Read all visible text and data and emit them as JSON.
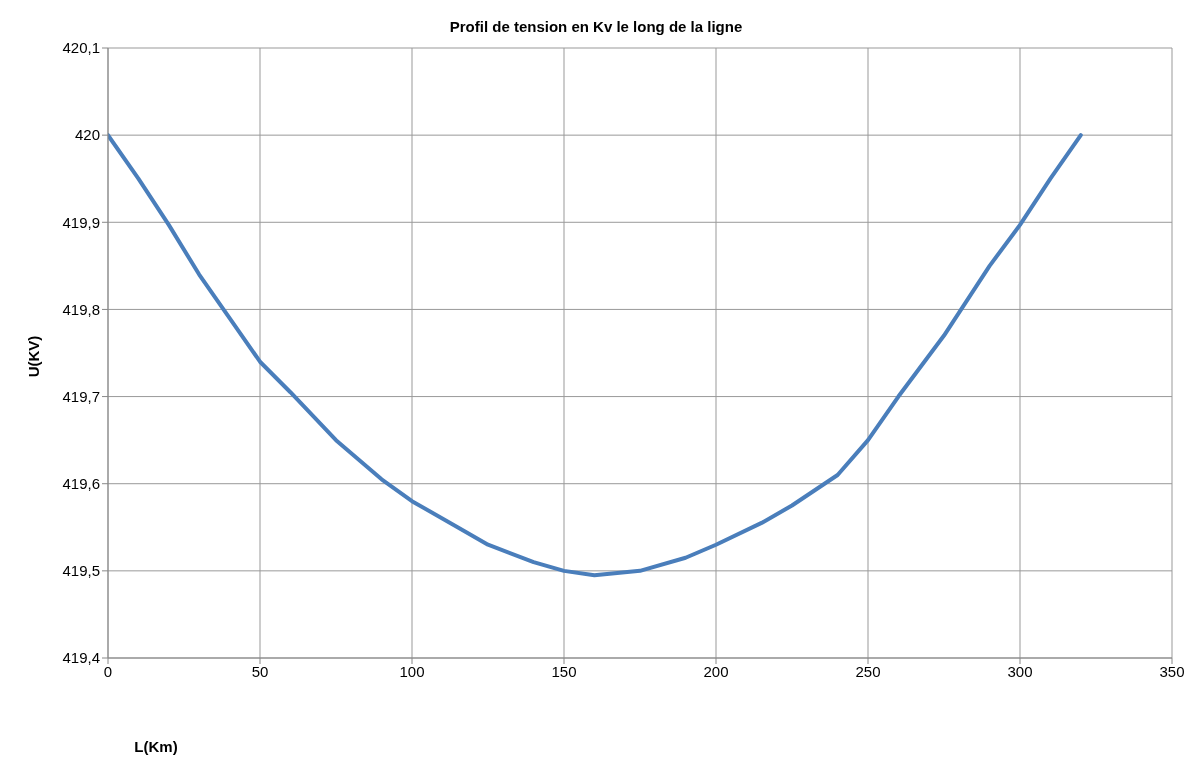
{
  "chart_data": {
    "type": "line",
    "title": "Profil de tension en Kv le long de la ligne",
    "xlabel": "L(Km)",
    "ylabel": "U(KV)",
    "x": [
      0,
      10,
      20,
      30,
      40,
      50,
      60,
      75,
      90,
      100,
      115,
      125,
      140,
      150,
      160,
      175,
      190,
      200,
      215,
      225,
      240,
      250,
      260,
      275,
      290,
      300,
      310,
      320
    ],
    "series": [
      {
        "color": "#4a7ebb",
        "values": [
          420,
          419.95,
          419.897,
          419.84,
          419.79,
          419.74,
          419.705,
          419.65,
          419.605,
          419.58,
          419.55,
          419.53,
          419.51,
          419.5,
          419.495,
          419.5,
          419.515,
          419.53,
          419.555,
          419.575,
          419.61,
          419.65,
          419.7,
          419.77,
          419.85,
          419.897,
          419.95,
          420
        ]
      }
    ],
    "xlim": [
      0,
      350
    ],
    "xticks": [
      0,
      50,
      100,
      150,
      200,
      250,
      300,
      350
    ],
    "ylim": [
      419.4,
      420.1
    ],
    "yticks": [
      {
        "value": 419.4,
        "label": "419,4"
      },
      {
        "value": 419.5,
        "label": "419,5"
      },
      {
        "value": 419.6,
        "label": "419,6"
      },
      {
        "value": 419.7,
        "label": "419,7"
      },
      {
        "value": 419.8,
        "label": "419,8"
      },
      {
        "value": 419.9,
        "label": "419,9"
      },
      420,
      {
        "value": 420.1,
        "label": "420,1"
      }
    ],
    "grid": true,
    "legend": false,
    "marker": "none",
    "line_style": "solid"
  }
}
